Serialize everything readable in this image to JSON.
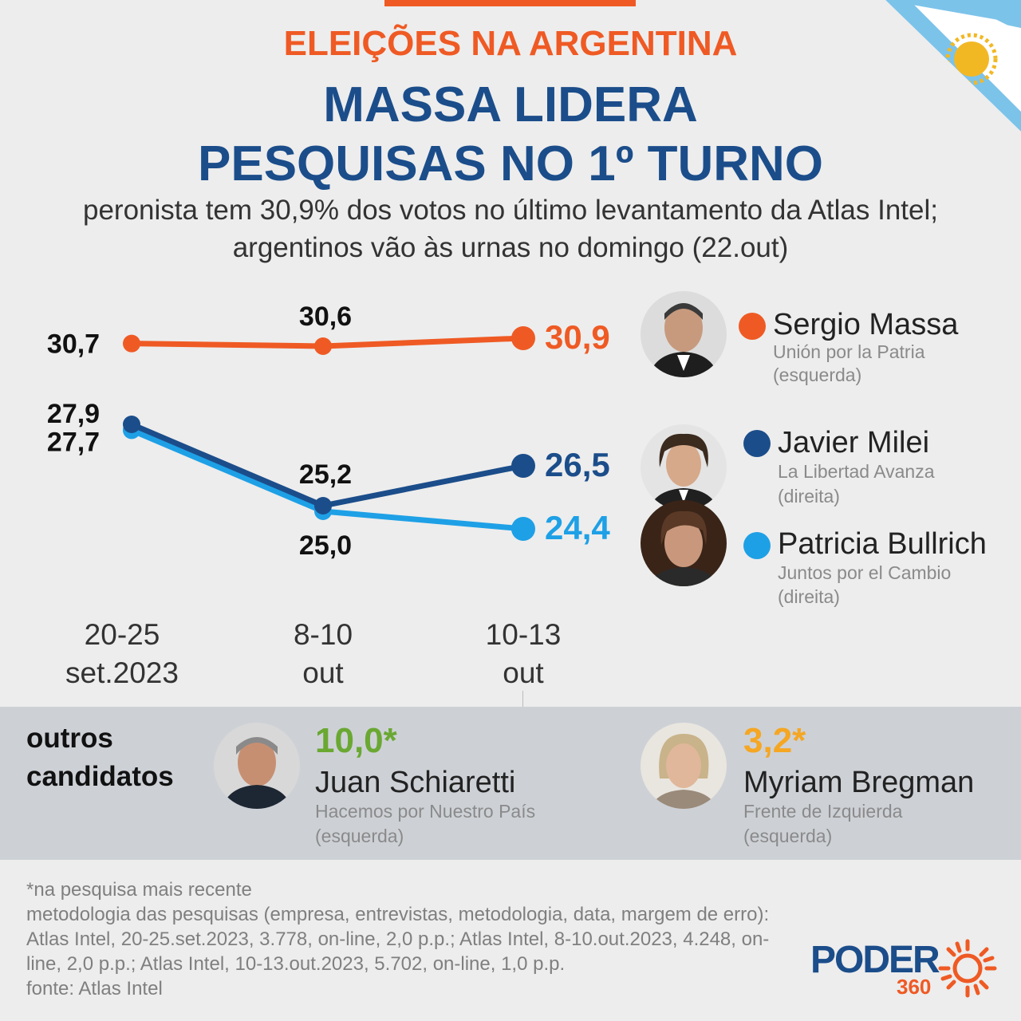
{
  "header": {
    "kicker": "ELEIÇÕES NA ARGENTINA",
    "title_line1": "MASSA LIDERA",
    "title_line2": "PESQUISAS NO 1º TURNO",
    "subtitle_line1": "peronista tem 30,9% dos votos no último levantamento da Atlas Intel;",
    "subtitle_line2": "argentinos vão às urnas no domingo (22.out)"
  },
  "colors": {
    "massa": "#ef5a24",
    "milei": "#1b4d8a",
    "bullrich": "#1ea0e6",
    "schiaretti": "#6aa832",
    "bregman": "#f5a623",
    "accent": "#ef5a24",
    "title": "#1b4d8a"
  },
  "chart_data": {
    "type": "line",
    "categories": [
      "20-25 set.2023",
      "8-10 out",
      "10-13 out"
    ],
    "category_lines": [
      [
        "20-25",
        "set.2023"
      ],
      [
        "8-10",
        "out"
      ],
      [
        "10-13",
        "out"
      ]
    ],
    "series": [
      {
        "name": "Sergio Massa",
        "values": [
          30.7,
          30.6,
          30.9
        ],
        "labels": [
          "30,7",
          "30,6",
          "30,9"
        ]
      },
      {
        "name": "Javier Milei",
        "values": [
          27.9,
          25.2,
          26.5
        ],
        "labels": [
          "27,9",
          "25,2",
          "26,5"
        ]
      },
      {
        "name": "Patricia Bullrich",
        "values": [
          27.7,
          25.0,
          24.4
        ],
        "labels": [
          "27,7",
          "25,0",
          "24,4"
        ]
      }
    ]
  },
  "candidates": [
    {
      "name": "Sergio Massa",
      "party": "Unión por la Patria",
      "leaning": "(esquerda)",
      "avatar": "massa-photo"
    },
    {
      "name": "Javier Milei",
      "party": "La Libertad Avanza",
      "leaning": "(direita)",
      "avatar": "milei-photo"
    },
    {
      "name": "Patricia Bullrich",
      "party": "Juntos por el Cambio",
      "leaning": "(direita)",
      "avatar": "bullrich-photo"
    }
  ],
  "others": {
    "label_line1": "outros",
    "label_line2": "candidatos",
    "items": [
      {
        "value": "10,0*",
        "name": "Juan Schiaretti",
        "party": "Hacemos por Nuestro País",
        "leaning": "(esquerda)"
      },
      {
        "value": "3,2*",
        "name": "Myriam Bregman",
        "party": "Frente de Izquierda",
        "leaning": "(esquerda)"
      }
    ]
  },
  "notes": {
    "line1": "*na pesquisa mais recente",
    "line2": "metodologia das pesquisas (empresa, entrevistas, metodologia, data, margem de erro): Atlas Intel, 20-25.set.2023, 3.778, on-line, 2,0 p.p.; Atlas Intel, 8-10.out.2023, 4.248, on-line, 2,0 p.p.; Atlas Intel, 10-13.out.2023, 5.702, on-line, 1,0 p.p.",
    "line3": "fonte: Atlas Intel"
  },
  "logo": {
    "text": "PODER",
    "sub": "360"
  }
}
